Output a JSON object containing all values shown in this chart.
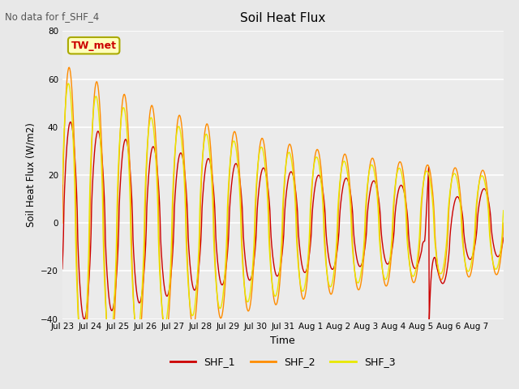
{
  "title": "Soil Heat Flux",
  "subtitle": "No data for f_SHF_4",
  "xlabel": "Time",
  "ylabel": "Soil Heat Flux (W/m2)",
  "ylim": [
    -40,
    80
  ],
  "yticks": [
    -40,
    -20,
    0,
    20,
    40,
    60,
    80
  ],
  "legend_labels": [
    "SHF_1",
    "SHF_2",
    "SHF_3"
  ],
  "colors": {
    "SHF_1": "#cc0000",
    "SHF_2": "#ff8c00",
    "SHF_3": "#e8e800"
  },
  "annotation_text": "TW_met",
  "annotation_box_color": "#ffffbb",
  "annotation_box_edge": "#aaaa00",
  "background_color": "#e8e8e8",
  "plot_bg_color": "#ebebeb",
  "n_days": 16,
  "xtick_labels": [
    "Jul 23",
    "Jul 24",
    "Jul 25",
    "Jul 26",
    "Jul 27",
    "Jul 28",
    "Jul 29",
    "Jul 30",
    "Jul 31",
    "Aug 1",
    "Aug 2",
    "Aug 3",
    "Aug 4",
    "Aug 5",
    "Aug 6",
    "Aug 7"
  ]
}
